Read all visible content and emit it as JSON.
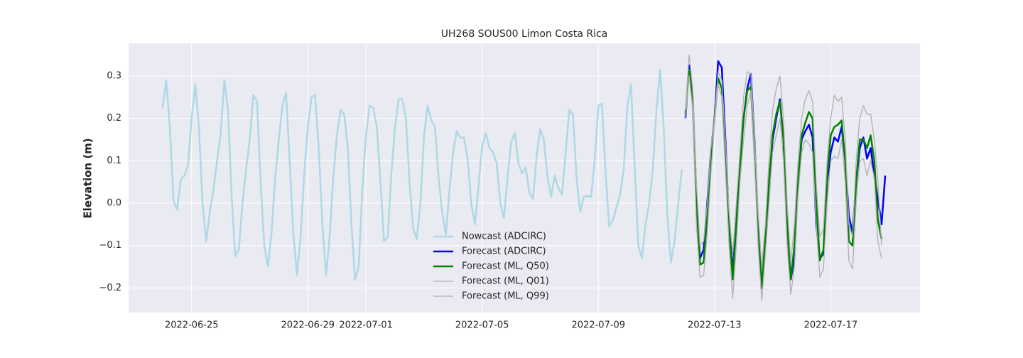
{
  "chart_data": {
    "type": "line",
    "title": "UH268 SOUS00 Limon Costa Rica",
    "y_label": "Elevation (m)",
    "xlim": [
      "2022-06-22 19:54",
      "2022-07-20 01:45"
    ],
    "xticks": [
      "2022-06-25",
      "2022-06-29",
      "2022-07-01",
      "2022-07-05",
      "2022-07-09",
      "2022-07-13",
      "2022-07-17"
    ],
    "ylim": [
      -0.258,
      0.377
    ],
    "yticks": [
      {
        "value": -0.2,
        "label": "−0.2"
      },
      {
        "value": -0.1,
        "label": "−0.1"
      },
      {
        "value": 0,
        "label": "0.0"
      },
      0.1,
      0.2,
      0.3
    ],
    "grid": true,
    "background": "#eaeaf2",
    "legend": "lower center",
    "series": [
      {
        "name": "Nowcast (ADCIRC)",
        "color": "#add8e6",
        "linewidth": 2.5,
        "x": [
          "2022-06-24 00:00",
          "2022-06-24 03:00",
          "2022-06-24 06:00",
          "2022-06-24 09:00",
          "2022-06-24 12:00",
          "2022-06-24 15:00",
          "2022-06-24 18:00",
          "2022-06-24 21:00",
          "2022-06-25 00:00",
          "2022-06-25 03:00",
          "2022-06-25 06:00",
          "2022-06-25 09:00",
          "2022-06-25 12:00",
          "2022-06-25 15:00",
          "2022-06-25 18:00",
          "2022-06-25 21:00",
          "2022-06-26 00:00",
          "2022-06-26 03:00",
          "2022-06-26 06:00",
          "2022-06-26 09:00",
          "2022-06-26 12:00",
          "2022-06-26 15:00",
          "2022-06-26 18:00",
          "2022-06-26 21:00",
          "2022-06-27 00:00",
          "2022-06-27 03:00",
          "2022-06-27 06:00",
          "2022-06-27 09:00",
          "2022-06-27 12:00",
          "2022-06-27 15:00",
          "2022-06-27 18:00",
          "2022-06-27 21:00",
          "2022-06-28 00:00",
          "2022-06-28 03:00",
          "2022-06-28 06:00",
          "2022-06-28 09:00",
          "2022-06-28 12:00",
          "2022-06-28 15:00",
          "2022-06-28 18:00",
          "2022-06-28 21:00",
          "2022-06-29 00:00",
          "2022-06-29 03:00",
          "2022-06-29 06:00",
          "2022-06-29 09:00",
          "2022-06-29 12:00",
          "2022-06-29 15:00",
          "2022-06-29 18:00",
          "2022-06-29 21:00",
          "2022-06-30 00:00",
          "2022-06-30 03:00",
          "2022-06-30 06:00",
          "2022-06-30 09:00",
          "2022-06-30 12:00",
          "2022-06-30 15:00",
          "2022-06-30 18:00",
          "2022-06-30 21:00",
          "2022-07-01 00:00",
          "2022-07-01 03:00",
          "2022-07-01 06:00",
          "2022-07-01 09:00",
          "2022-07-01 12:00",
          "2022-07-01 15:00",
          "2022-07-01 18:00",
          "2022-07-01 21:00",
          "2022-07-02 00:00",
          "2022-07-02 03:00",
          "2022-07-02 06:00",
          "2022-07-02 09:00",
          "2022-07-02 12:00",
          "2022-07-02 15:00",
          "2022-07-02 18:00",
          "2022-07-02 21:00",
          "2022-07-03 00:00",
          "2022-07-03 03:00",
          "2022-07-03 06:00",
          "2022-07-03 09:00",
          "2022-07-03 12:00",
          "2022-07-03 15:00",
          "2022-07-03 18:00",
          "2022-07-03 21:00",
          "2022-07-04 00:00",
          "2022-07-04 03:00",
          "2022-07-04 06:00",
          "2022-07-04 09:00",
          "2022-07-04 12:00",
          "2022-07-04 15:00",
          "2022-07-04 18:00",
          "2022-07-04 21:00",
          "2022-07-05 00:00",
          "2022-07-05 03:00",
          "2022-07-05 06:00",
          "2022-07-05 09:00",
          "2022-07-05 12:00",
          "2022-07-05 15:00",
          "2022-07-05 18:00",
          "2022-07-05 21:00",
          "2022-07-06 00:00",
          "2022-07-06 03:00",
          "2022-07-06 06:00",
          "2022-07-06 09:00",
          "2022-07-06 12:00",
          "2022-07-06 15:00",
          "2022-07-06 18:00",
          "2022-07-06 21:00",
          "2022-07-07 00:00",
          "2022-07-07 03:00",
          "2022-07-07 06:00",
          "2022-07-07 09:00",
          "2022-07-07 12:00",
          "2022-07-07 15:00",
          "2022-07-07 18:00",
          "2022-07-07 21:00",
          "2022-07-08 00:00",
          "2022-07-08 03:00",
          "2022-07-08 06:00",
          "2022-07-08 09:00",
          "2022-07-08 12:00",
          "2022-07-08 15:00",
          "2022-07-08 18:00",
          "2022-07-08 21:00",
          "2022-07-09 00:00",
          "2022-07-09 03:00",
          "2022-07-09 06:00",
          "2022-07-09 09:00",
          "2022-07-09 12:00",
          "2022-07-09 15:00",
          "2022-07-09 18:00",
          "2022-07-09 21:00",
          "2022-07-10 00:00",
          "2022-07-10 03:00",
          "2022-07-10 06:00",
          "2022-07-10 09:00",
          "2022-07-10 12:00",
          "2022-07-10 15:00",
          "2022-07-10 18:00",
          "2022-07-10 21:00",
          "2022-07-11 00:00",
          "2022-07-11 03:00",
          "2022-07-11 06:00",
          "2022-07-11 09:00",
          "2022-07-11 12:00",
          "2022-07-11 15:00",
          "2022-07-11 18:00",
          "2022-07-11 21:00"
        ],
        "values": [
          0.225,
          0.29,
          0.18,
          0.005,
          -0.015,
          0.055,
          0.065,
          0.09,
          0.2,
          0.28,
          0.18,
          0.0,
          -0.09,
          -0.02,
          0.03,
          0.1,
          0.165,
          0.29,
          0.22,
          0.02,
          -0.125,
          -0.11,
          0.0,
          0.08,
          0.15,
          0.255,
          0.24,
          0.05,
          -0.1,
          -0.15,
          -0.07,
          0.06,
          0.15,
          0.23,
          0.26,
          0.1,
          -0.07,
          -0.17,
          -0.08,
          0.07,
          0.18,
          0.25,
          0.255,
          0.13,
          -0.05,
          -0.17,
          -0.08,
          0.06,
          0.16,
          0.22,
          0.21,
          0.13,
          -0.05,
          -0.18,
          -0.15,
          0.03,
          0.16,
          0.23,
          0.225,
          0.18,
          0.05,
          -0.09,
          -0.08,
          0.07,
          0.18,
          0.245,
          0.245,
          0.2,
          0.05,
          -0.06,
          -0.085,
          0.0,
          0.16,
          0.23,
          0.195,
          0.18,
          0.06,
          -0.02,
          -0.075,
          0.03,
          0.12,
          0.17,
          0.155,
          0.155,
          0.105,
          0.0,
          -0.05,
          0.04,
          0.135,
          0.165,
          0.13,
          0.12,
          0.095,
          0.0,
          -0.035,
          0.06,
          0.145,
          0.165,
          0.095,
          0.07,
          0.085,
          0.025,
          0.01,
          0.11,
          0.175,
          0.15,
          0.06,
          0.015,
          0.065,
          0.035,
          0.02,
          0.12,
          0.22,
          0.21,
          0.06,
          -0.02,
          0.015,
          0.017,
          0.015,
          0.1,
          0.23,
          0.235,
          0.07,
          -0.055,
          -0.04,
          -0.01,
          0.02,
          0.08,
          0.23,
          0.28,
          0.09,
          -0.1,
          -0.13,
          -0.05,
          0.0,
          0.08,
          0.22,
          0.315,
          0.18,
          -0.03,
          -0.14,
          -0.09,
          0.0,
          0.08
        ]
      },
      {
        "name": "Forecast (ADCIRC)",
        "color": "#0000ff",
        "linewidth": 2.5,
        "x": [
          "2022-07-12 00:00",
          "2022-07-12 03:00",
          "2022-07-12 06:00",
          "2022-07-12 09:00",
          "2022-07-12 12:00",
          "2022-07-12 15:00",
          "2022-07-12 18:00",
          "2022-07-12 21:00",
          "2022-07-13 00:00",
          "2022-07-13 03:00",
          "2022-07-13 06:00",
          "2022-07-13 09:00",
          "2022-07-13 12:00",
          "2022-07-13 15:00",
          "2022-07-13 18:00",
          "2022-07-13 21:00",
          "2022-07-14 00:00",
          "2022-07-14 03:00",
          "2022-07-14 06:00",
          "2022-07-14 09:00",
          "2022-07-14 12:00",
          "2022-07-14 15:00",
          "2022-07-14 18:00",
          "2022-07-14 21:00",
          "2022-07-15 00:00",
          "2022-07-15 03:00",
          "2022-07-15 06:00",
          "2022-07-15 09:00",
          "2022-07-15 12:00",
          "2022-07-15 15:00",
          "2022-07-15 18:00",
          "2022-07-15 21:00",
          "2022-07-16 00:00",
          "2022-07-16 03:00",
          "2022-07-16 06:00",
          "2022-07-16 09:00",
          "2022-07-16 12:00",
          "2022-07-16 15:00",
          "2022-07-16 18:00",
          "2022-07-16 21:00",
          "2022-07-17 00:00",
          "2022-07-17 03:00",
          "2022-07-17 06:00",
          "2022-07-17 09:00",
          "2022-07-17 12:00",
          "2022-07-17 15:00",
          "2022-07-17 18:00",
          "2022-07-17 21:00",
          "2022-07-18 00:00",
          "2022-07-18 03:00",
          "2022-07-18 06:00",
          "2022-07-18 09:00",
          "2022-07-18 12:00",
          "2022-07-18 15:00",
          "2022-07-18 18:00",
          "2022-07-18 21:00"
        ],
        "values": [
          0.2,
          0.325,
          0.24,
          0.0,
          -0.13,
          -0.11,
          0.0,
          0.12,
          0.2,
          0.335,
          0.32,
          0.15,
          -0.05,
          -0.16,
          -0.05,
          0.1,
          0.2,
          0.27,
          0.305,
          0.15,
          -0.05,
          -0.2,
          -0.1,
          0.05,
          0.15,
          0.2,
          0.245,
          0.15,
          -0.05,
          -0.18,
          -0.13,
          0.05,
          0.15,
          0.17,
          0.185,
          0.155,
          -0.05,
          -0.13,
          -0.12,
          0.05,
          0.12,
          0.155,
          0.145,
          0.18,
          0.1,
          -0.03,
          -0.07,
          0.05,
          0.13,
          0.155,
          0.105,
          0.13,
          0.065,
          0.01,
          -0.05,
          0.065
        ]
      },
      {
        "name": "Forecast (ML, Q50)",
        "color": "#008000",
        "linewidth": 2.5,
        "x": [
          "2022-07-12 00:00",
          "2022-07-12 03:00",
          "2022-07-12 06:00",
          "2022-07-12 09:00",
          "2022-07-12 12:00",
          "2022-07-12 15:00",
          "2022-07-12 18:00",
          "2022-07-12 21:00",
          "2022-07-13 00:00",
          "2022-07-13 03:00",
          "2022-07-13 06:00",
          "2022-07-13 09:00",
          "2022-07-13 12:00",
          "2022-07-13 15:00",
          "2022-07-13 18:00",
          "2022-07-13 21:00",
          "2022-07-14 00:00",
          "2022-07-14 03:00",
          "2022-07-14 06:00",
          "2022-07-14 09:00",
          "2022-07-14 12:00",
          "2022-07-14 15:00",
          "2022-07-14 18:00",
          "2022-07-14 21:00",
          "2022-07-15 00:00",
          "2022-07-15 03:00",
          "2022-07-15 06:00",
          "2022-07-15 09:00",
          "2022-07-15 12:00",
          "2022-07-15 15:00",
          "2022-07-15 18:00",
          "2022-07-15 21:00",
          "2022-07-16 00:00",
          "2022-07-16 03:00",
          "2022-07-16 06:00",
          "2022-07-16 09:00",
          "2022-07-16 12:00",
          "2022-07-16 15:00",
          "2022-07-16 18:00",
          "2022-07-16 21:00",
          "2022-07-17 00:00",
          "2022-07-17 03:00",
          "2022-07-17 06:00",
          "2022-07-17 09:00",
          "2022-07-17 12:00",
          "2022-07-17 15:00",
          "2022-07-17 18:00",
          "2022-07-17 21:00",
          "2022-07-18 00:00",
          "2022-07-18 03:00",
          "2022-07-18 06:00",
          "2022-07-18 09:00",
          "2022-07-18 12:00",
          "2022-07-18 15:00",
          "2022-07-18 18:00"
        ],
        "values": [
          0.21,
          0.315,
          0.25,
          0.02,
          -0.145,
          -0.14,
          -0.03,
          0.1,
          0.2,
          0.295,
          0.27,
          0.12,
          -0.05,
          -0.18,
          -0.05,
          0.08,
          0.2,
          0.265,
          0.275,
          0.12,
          -0.06,
          -0.2,
          -0.08,
          0.05,
          0.16,
          0.21,
          0.24,
          0.15,
          -0.05,
          -0.18,
          -0.1,
          0.05,
          0.16,
          0.19,
          0.215,
          0.2,
          0.0,
          -0.135,
          -0.11,
          0.06,
          0.16,
          0.18,
          0.185,
          0.195,
          0.1,
          -0.09,
          -0.1,
          0.05,
          0.15,
          0.15,
          0.13,
          0.16,
          0.1,
          -0.04,
          -0.085
        ]
      },
      {
        "name": "Forecast (ML, Q01)",
        "color": "#b0b0b0",
        "linewidth": 1.3,
        "x": [
          "2022-07-12 00:00",
          "2022-07-12 03:00",
          "2022-07-12 06:00",
          "2022-07-12 09:00",
          "2022-07-12 12:00",
          "2022-07-12 15:00",
          "2022-07-12 18:00",
          "2022-07-12 21:00",
          "2022-07-13 00:00",
          "2022-07-13 03:00",
          "2022-07-13 06:00",
          "2022-07-13 09:00",
          "2022-07-13 12:00",
          "2022-07-13 15:00",
          "2022-07-13 18:00",
          "2022-07-13 21:00",
          "2022-07-14 00:00",
          "2022-07-14 03:00",
          "2022-07-14 06:00",
          "2022-07-14 09:00",
          "2022-07-14 12:00",
          "2022-07-14 15:00",
          "2022-07-14 18:00",
          "2022-07-14 21:00",
          "2022-07-15 00:00",
          "2022-07-15 03:00",
          "2022-07-15 06:00",
          "2022-07-15 09:00",
          "2022-07-15 12:00",
          "2022-07-15 15:00",
          "2022-07-15 18:00",
          "2022-07-15 21:00",
          "2022-07-16 00:00",
          "2022-07-16 03:00",
          "2022-07-16 06:00",
          "2022-07-16 09:00",
          "2022-07-16 12:00",
          "2022-07-16 15:00",
          "2022-07-16 18:00",
          "2022-07-16 21:00",
          "2022-07-17 00:00",
          "2022-07-17 03:00",
          "2022-07-17 06:00",
          "2022-07-17 09:00",
          "2022-07-17 12:00",
          "2022-07-17 15:00",
          "2022-07-17 18:00",
          "2022-07-17 21:00",
          "2022-07-18 00:00",
          "2022-07-18 03:00",
          "2022-07-18 06:00",
          "2022-07-18 09:00",
          "2022-07-18 12:00",
          "2022-07-18 15:00",
          "2022-07-18 18:00"
        ],
        "values": [
          0.2,
          0.3,
          0.22,
          -0.05,
          -0.175,
          -0.17,
          -0.07,
          0.07,
          0.19,
          0.28,
          0.25,
          0.08,
          -0.1,
          -0.225,
          -0.1,
          0.05,
          0.15,
          0.23,
          0.265,
          0.1,
          -0.1,
          -0.23,
          -0.12,
          0.0,
          0.12,
          0.16,
          0.2,
          0.1,
          -0.1,
          -0.215,
          -0.15,
          0.02,
          0.12,
          0.15,
          0.14,
          0.12,
          -0.05,
          -0.175,
          -0.155,
          0.0,
          0.1,
          0.11,
          0.105,
          0.15,
          0.05,
          -0.135,
          -0.155,
          0.0,
          0.1,
          0.105,
          0.065,
          0.1,
          0.06,
          -0.09,
          -0.13
        ]
      },
      {
        "name": "Forecast (ML, Q99)",
        "color": "#b0b0b0",
        "linewidth": 1.3,
        "x": [
          "2022-07-12 00:00",
          "2022-07-12 03:00",
          "2022-07-12 06:00",
          "2022-07-12 09:00",
          "2022-07-12 12:00",
          "2022-07-12 15:00",
          "2022-07-12 18:00",
          "2022-07-12 21:00",
          "2022-07-13 00:00",
          "2022-07-13 03:00",
          "2022-07-13 06:00",
          "2022-07-13 09:00",
          "2022-07-13 12:00",
          "2022-07-13 15:00",
          "2022-07-13 18:00",
          "2022-07-13 21:00",
          "2022-07-14 00:00",
          "2022-07-14 03:00",
          "2022-07-14 06:00",
          "2022-07-14 09:00",
          "2022-07-14 12:00",
          "2022-07-14 15:00",
          "2022-07-14 18:00",
          "2022-07-14 21:00",
          "2022-07-15 00:00",
          "2022-07-15 03:00",
          "2022-07-15 06:00",
          "2022-07-15 09:00",
          "2022-07-15 12:00",
          "2022-07-15 15:00",
          "2022-07-15 18:00",
          "2022-07-15 21:00",
          "2022-07-16 00:00",
          "2022-07-16 03:00",
          "2022-07-16 06:00",
          "2022-07-16 09:00",
          "2022-07-16 12:00",
          "2022-07-16 15:00",
          "2022-07-16 18:00",
          "2022-07-16 21:00",
          "2022-07-17 00:00",
          "2022-07-17 03:00",
          "2022-07-17 06:00",
          "2022-07-17 09:00",
          "2022-07-17 12:00",
          "2022-07-17 15:00",
          "2022-07-17 18:00",
          "2022-07-17 21:00",
          "2022-07-18 00:00",
          "2022-07-18 03:00",
          "2022-07-18 06:00",
          "2022-07-18 09:00",
          "2022-07-18 12:00",
          "2022-07-18 15:00",
          "2022-07-18 18:00"
        ],
        "values": [
          0.22,
          0.35,
          0.27,
          0.05,
          -0.1,
          -0.09,
          0.0,
          0.13,
          0.2,
          0.31,
          0.29,
          0.15,
          -0.02,
          -0.12,
          0.0,
          0.12,
          0.25,
          0.31,
          0.305,
          0.16,
          -0.02,
          -0.15,
          -0.05,
          0.1,
          0.22,
          0.27,
          0.3,
          0.2,
          0.0,
          -0.14,
          -0.05,
          0.1,
          0.2,
          0.245,
          0.265,
          0.24,
          0.05,
          -0.08,
          -0.06,
          0.1,
          0.2,
          0.255,
          0.24,
          0.25,
          0.15,
          -0.05,
          -0.08,
          0.1,
          0.2,
          0.23,
          0.21,
          0.21,
          0.15,
          0.05,
          -0.1
        ]
      }
    ]
  }
}
